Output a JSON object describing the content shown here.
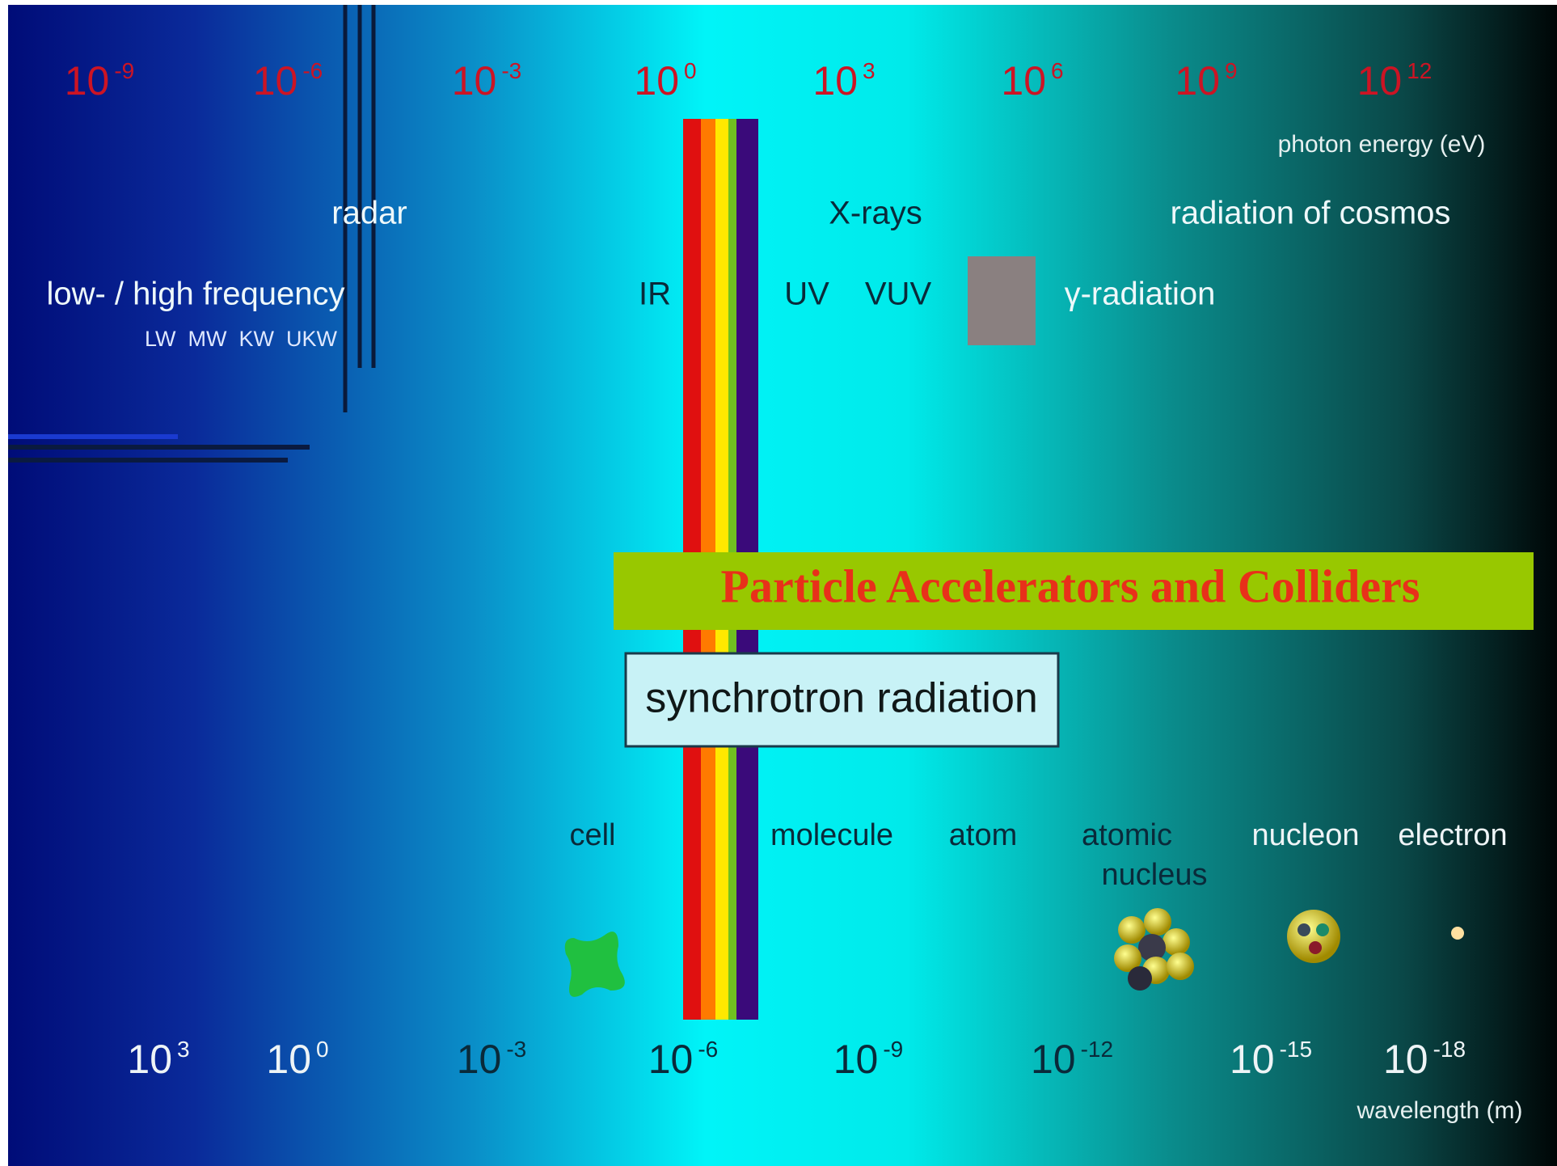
{
  "energy_scale": {
    "ticks": [
      {
        "base": "10",
        "exp": "-9"
      },
      {
        "base": "10",
        "exp": "-6"
      },
      {
        "base": "10",
        "exp": "-3"
      },
      {
        "base": "10",
        "exp": "0"
      },
      {
        "base": "10",
        "exp": "3"
      },
      {
        "base": "10",
        "exp": "6"
      },
      {
        "base": "10",
        "exp": "9"
      },
      {
        "base": "10",
        "exp": "12"
      }
    ],
    "label": "photon energy (eV)"
  },
  "regions": {
    "radar": "radar",
    "xrays": "X-rays",
    "cosmos": "radiation of cosmos",
    "frequency": "low- / high frequency",
    "bands": "LW  MW  KW  UKW",
    "ir": "IR",
    "uv": "UV",
    "vuv": "VUV",
    "gamma": "γ-radiation"
  },
  "banner": "Particle Accelerators and Colliders",
  "synchrotron": "synchrotron radiation",
  "objects": [
    "cell",
    "molecule",
    "atom",
    "atomic",
    "nucleus",
    "nucleon",
    "electron"
  ],
  "wavelength_scale": {
    "ticks": [
      {
        "base": "10",
        "exp": "3"
      },
      {
        "base": "10",
        "exp": "0"
      },
      {
        "base": "10",
        "exp": "-3"
      },
      {
        "base": "10",
        "exp": "-6"
      },
      {
        "base": "10",
        "exp": "-9"
      },
      {
        "base": "10",
        "exp": "-12"
      },
      {
        "base": "10",
        "exp": "-15"
      },
      {
        "base": "10",
        "exp": "-18"
      }
    ],
    "label": "wavelength (m)"
  }
}
